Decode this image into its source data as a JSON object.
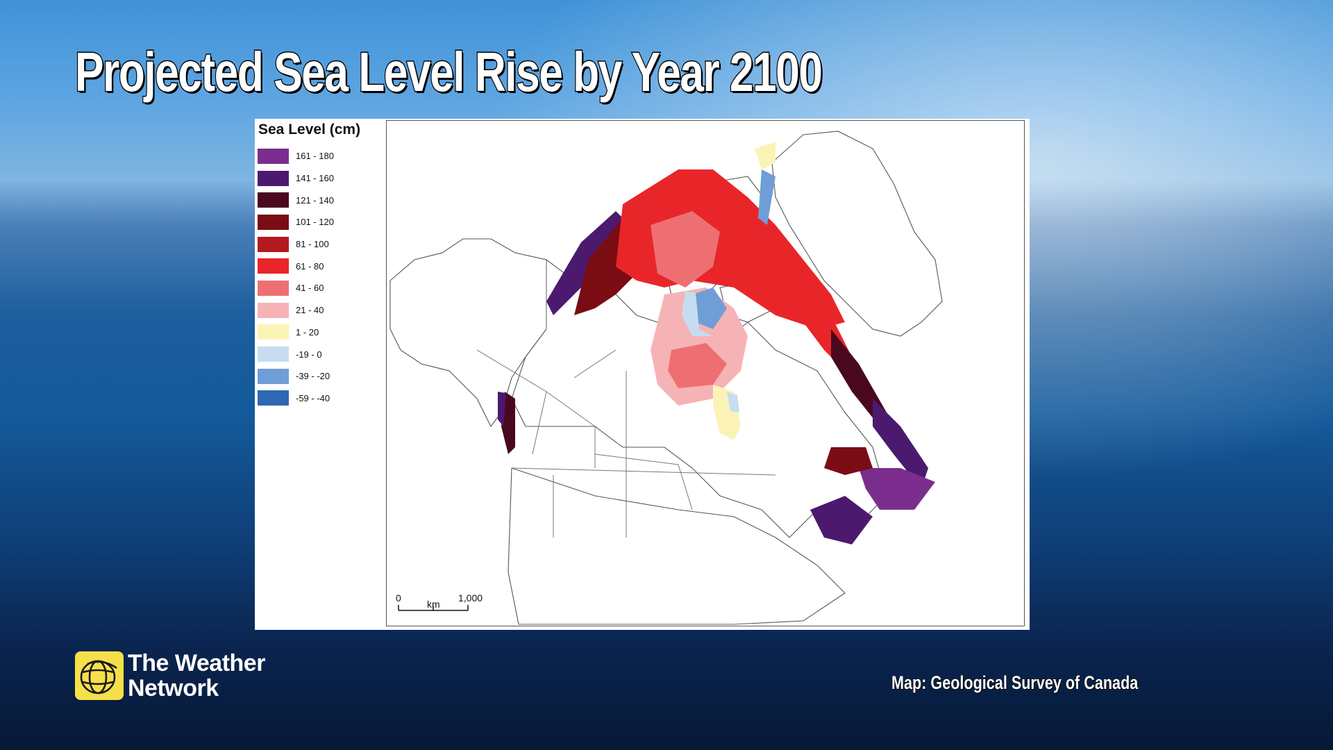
{
  "title": "Projected Sea Level Rise by Year 2100",
  "legend": {
    "title": "Sea Level (cm)",
    "items": [
      {
        "label": "161 - 180",
        "color": "#7b2d8e"
      },
      {
        "label": "141 - 160",
        "color": "#4b1a6e"
      },
      {
        "label": "121 - 140",
        "color": "#4a0820"
      },
      {
        "label": "101 - 120",
        "color": "#7a0c14"
      },
      {
        "label": "81 - 100",
        "color": "#b31a20"
      },
      {
        "label": "61 - 80",
        "color": "#e8262a"
      },
      {
        "label": "41 - 60",
        "color": "#ee6f72"
      },
      {
        "label": "21 - 40",
        "color": "#f6b3b6"
      },
      {
        "label": "1 - 20",
        "color": "#fbf3b6"
      },
      {
        "label": "-19 - 0",
        "color": "#c6dcf1"
      },
      {
        "label": "-39 - -20",
        "color": "#6f9ed6"
      },
      {
        "label": "-59 - -40",
        "color": "#2f67b3"
      }
    ]
  },
  "scale_bar": {
    "start_label": "0",
    "end_label": "1,000",
    "unit_label": "km"
  },
  "brand": {
    "line1": "The Weather",
    "line2": "Network",
    "logo_icon": "globe-icon"
  },
  "credit": "Map: Geological Survey of Canada"
}
